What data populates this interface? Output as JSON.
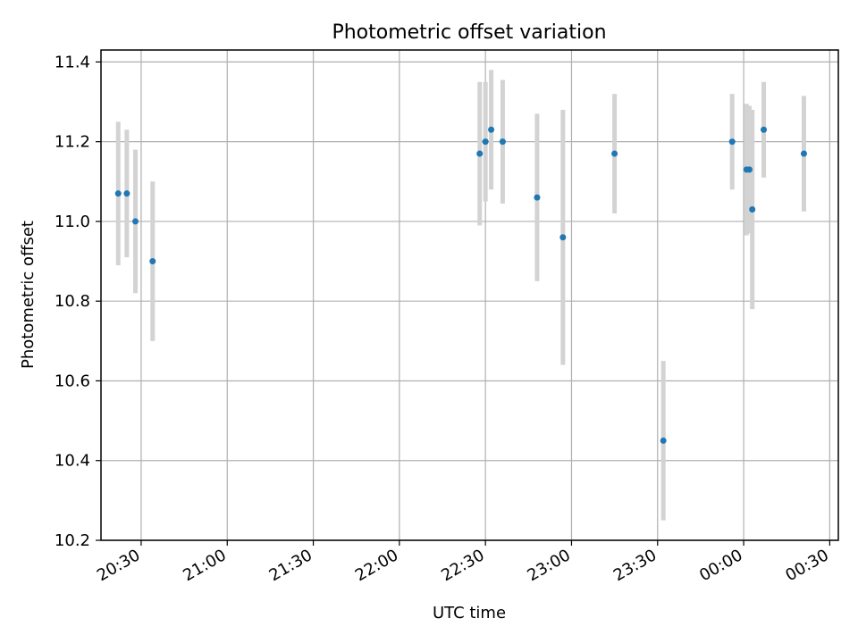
{
  "chart_data": {
    "type": "scatter",
    "title": "Photometric offset variation",
    "xlabel": "UTC time",
    "ylabel": "Photometric offset",
    "x_unit": "UTC time (HH:MM), points past 24:00 belong to the next day",
    "x_range": [
      "20:16",
      "00:33"
    ],
    "ylim": [
      10.2,
      11.43
    ],
    "grid": true,
    "legend": "none",
    "x_ticks": [
      "20:30",
      "21:00",
      "21:30",
      "22:00",
      "22:30",
      "23:00",
      "23:30",
      "00:00",
      "00:30"
    ],
    "y_ticks": [
      "10.2",
      "10.4",
      "10.6",
      "10.8",
      "11.0",
      "11.2",
      "11.4"
    ],
    "colors": {
      "point": "#1f77b4",
      "errorbar": "#d3d3d3",
      "grid": "#b0b0b0"
    },
    "series": [
      {
        "points": [
          {
            "x": "20:22",
            "y": 11.07,
            "yerr": 0.18
          },
          {
            "x": "20:25",
            "y": 11.07,
            "yerr": 0.16
          },
          {
            "x": "20:28",
            "y": 11.0,
            "yerr": 0.18
          },
          {
            "x": "20:34",
            "y": 10.9,
            "yerr": 0.2
          },
          {
            "x": "22:28",
            "y": 11.17,
            "yerr": 0.18
          },
          {
            "x": "22:30",
            "y": 11.2,
            "yerr": 0.15
          },
          {
            "x": "22:32",
            "y": 11.23,
            "yerr": 0.15
          },
          {
            "x": "22:36",
            "y": 11.2,
            "yerr": 0.155
          },
          {
            "x": "22:48",
            "y": 11.06,
            "yerr": 0.21
          },
          {
            "x": "22:57",
            "y": 10.96,
            "yerr": 0.32
          },
          {
            "x": "23:15",
            "y": 11.17,
            "yerr": 0.15
          },
          {
            "x": "23:32",
            "y": 10.45,
            "yerr": 0.2
          },
          {
            "x": "23:56",
            "y": 11.2,
            "yerr": 0.12
          },
          {
            "x": "00:01",
            "y": 11.13,
            "yerr": 0.165
          },
          {
            "x": "00:02",
            "y": 11.13,
            "yerr": 0.16
          },
          {
            "x": "00:03",
            "y": 11.03,
            "yerr": 0.25
          },
          {
            "x": "00:07",
            "y": 11.23,
            "yerr": 0.12
          },
          {
            "x": "00:21",
            "y": 11.17,
            "yerr": 0.145
          }
        ]
      }
    ]
  }
}
